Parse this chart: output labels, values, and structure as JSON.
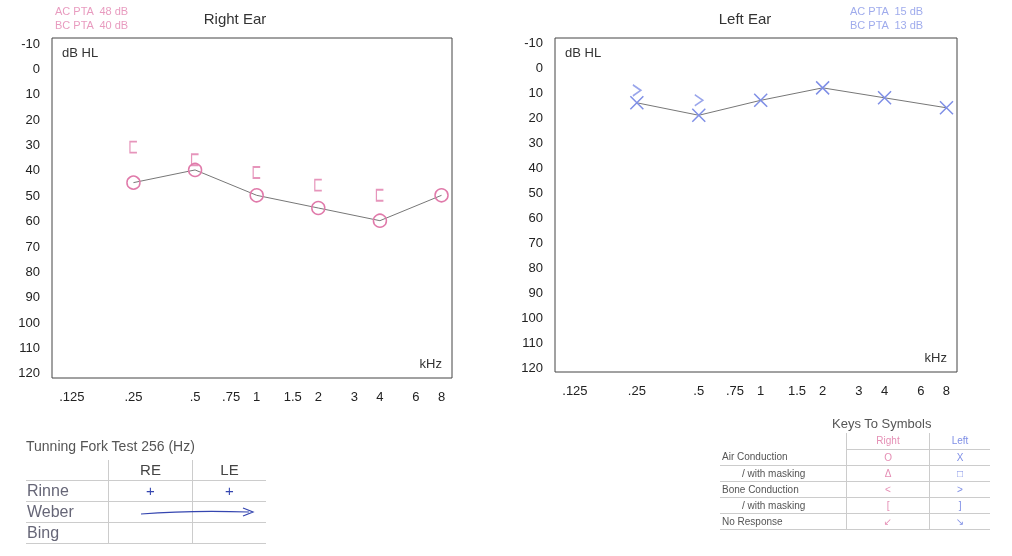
{
  "chart_data": [
    {
      "type": "line",
      "title": "Right Ear",
      "xlabel": "kHz",
      "ylabel": "dB HL",
      "annotations": [
        "AC PTA  48 dB",
        "BC PTA  40 dB"
      ],
      "log": "x",
      "line_style": "solid",
      "x": [
        0.25,
        0.5,
        1,
        2,
        4,
        8
      ],
      "xlim": [
        0.1,
        9
      ],
      "xticks": [
        {
          "value": 0.125,
          "label": ".125"
        },
        {
          "value": 0.25,
          "label": ".25"
        },
        {
          "value": 0.5,
          "label": ".5"
        },
        {
          "value": 0.75,
          "label": ".75"
        },
        1,
        1.5,
        2,
        3,
        4,
        6,
        8
      ],
      "ylim": [
        122,
        -12
      ],
      "yticks": [
        -10,
        0,
        10,
        20,
        30,
        40,
        50,
        60,
        70,
        80,
        90,
        100,
        110,
        120
      ],
      "series": [
        {
          "type": "line",
          "marker": "circle",
          "color": "#e07aaa",
          "values": [
            45,
            40,
            50,
            55,
            60,
            50
          ]
        },
        {
          "type": "scatter",
          "color": "#e07aaa",
          "x": [
            0.25,
            0.5,
            1,
            2,
            4
          ],
          "values": [
            31,
            36,
            41,
            46,
            50
          ]
        }
      ]
    },
    {
      "type": "line",
      "title": "Left Ear",
      "xlabel": "kHz",
      "ylabel": "dB HL",
      "annotations": [
        "AC PTA  15 dB",
        "BC PTA  13 dB"
      ],
      "log": "x",
      "line_style": "solid",
      "x": [
        0.25,
        0.5,
        1,
        2,
        4,
        8
      ],
      "xlim": [
        0.1,
        9
      ],
      "xticks": [
        {
          "value": 0.125,
          "label": ".125"
        },
        {
          "value": 0.25,
          "label": ".25"
        },
        {
          "value": 0.5,
          "label": ".5"
        },
        {
          "value": 0.75,
          "label": ".75"
        },
        1,
        1.5,
        2,
        3,
        4,
        6,
        8
      ],
      "ylim": [
        122,
        -12
      ],
      "yticks": [
        -10,
        0,
        10,
        20,
        30,
        40,
        50,
        60,
        70,
        80,
        90,
        100,
        110,
        120
      ],
      "series": [
        {
          "type": "line",
          "marker": "cross",
          "color": "#7f8fe6",
          "values": [
            14,
            19,
            13,
            8,
            12,
            16
          ]
        },
        {
          "type": "scatter",
          "color": "#7f8fe6",
          "x": [
            0.25,
            0.5
          ],
          "values": [
            9,
            13
          ]
        }
      ]
    },
    {
      "type": "other",
      "title": "Tunning Fork Test 256 (Hz)",
      "categories": [
        "RE",
        "LE"
      ],
      "y_categories": [
        "Rinne",
        "Weber",
        "Bing"
      ],
      "cell_labels": [
        [
          "+",
          "+"
        ],
        [
          null,
          null
        ],
        [
          null,
          null
        ]
      ]
    },
    {
      "type": "other",
      "title": "Keys To Symbols",
      "categories": [
        "Right",
        "Left"
      ],
      "colors": [
        "#e58fb5",
        "#7f8fe6"
      ],
      "y_categories": [
        "Air Conduction",
        "/ with masking",
        "Bone Conduction",
        "/ with masking",
        "No Response"
      ],
      "cell_labels": [
        [
          "O",
          "X"
        ],
        [
          "Δ",
          "□"
        ],
        [
          "<",
          ">"
        ],
        [
          "[",
          "]"
        ],
        [
          "↙",
          "↘"
        ]
      ]
    }
  ]
}
